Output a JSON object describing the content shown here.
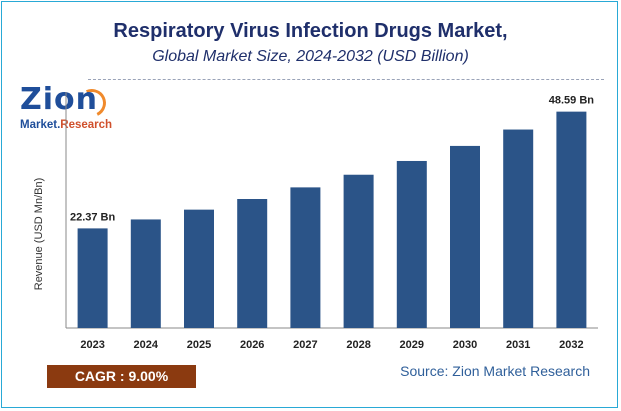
{
  "header": {
    "title": "Respiratory Virus Infection Drugs Market,",
    "subtitle": "Global Market Size, 2024-2032 (USD Billion)"
  },
  "logo": {
    "name": "Zion",
    "market": "Market.",
    "research": "Research"
  },
  "footer": {
    "cagr": "CAGR :  9.00%",
    "source": "Source: Zion Market Research"
  },
  "colors": {
    "bar": "#2b5488",
    "title": "#1f2f6b",
    "cagr_box": "#8b3a10",
    "frame": "#29a9d6"
  },
  "chart_data": {
    "type": "bar",
    "title": "Respiratory Virus Infection Drugs Market,",
    "subtitle": "Global Market Size, 2024-2032 (USD Billion)",
    "xlabel": "",
    "ylabel": "Revenue (USD Mn/Bn)",
    "categories": [
      "2023",
      "2024",
      "2025",
      "2026",
      "2027",
      "2028",
      "2029",
      "2030",
      "2031",
      "2032"
    ],
    "values": [
      22.37,
      24.38,
      26.58,
      28.97,
      31.58,
      34.42,
      37.51,
      40.89,
      44.57,
      48.59
    ],
    "data_labels": [
      {
        "index": 0,
        "text": "22.37 Bn"
      },
      {
        "index": 9,
        "text": "48.59 Bn"
      }
    ],
    "ylim": [
      0,
      53
    ],
    "grid": false,
    "legend": "none"
  }
}
